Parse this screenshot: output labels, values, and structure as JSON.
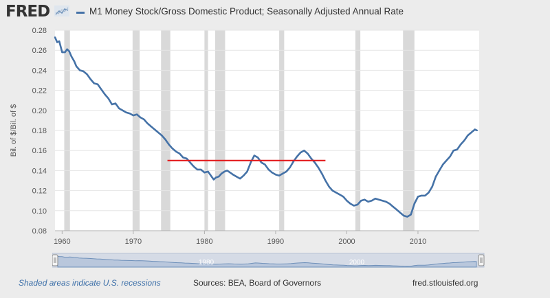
{
  "header": {
    "logo": "FRED",
    "series_title": "M1 Money Stock/Gross Domestic Product; Seasonally Adjusted Annual Rate",
    "series_color": "#4572a7"
  },
  "footer": {
    "recession_note": "Shaded areas indicate U.S. recessions",
    "sources": "Sources: BEA, Board of Governors",
    "site": "fred.stlouisfed.org"
  },
  "navigator": {
    "labels": [
      "1980",
      "2000"
    ]
  },
  "chart_data": {
    "type": "line",
    "title": "M1 Money Stock/Gross Domestic Product; Seasonally Adjusted Annual Rate",
    "ylabel": "Bil. of $/Bil. of $",
    "xlabel": "",
    "xlim": [
      1959,
      2018.6
    ],
    "ylim": [
      0.08,
      0.28
    ],
    "x_ticks": [
      1960,
      1970,
      1980,
      1990,
      2000,
      2010
    ],
    "y_ticks": [
      0.08,
      0.1,
      0.12,
      0.14,
      0.16,
      0.18,
      0.2,
      0.22,
      0.24,
      0.26,
      0.28
    ],
    "y_tick_labels": [
      "0.08",
      "0.10",
      "0.12",
      "0.14",
      "0.16",
      "0.18",
      "0.20",
      "0.22",
      "0.24",
      "0.26",
      "0.28"
    ],
    "grid": true,
    "line_color": "#4572a7",
    "recession_color": "#d9d9d9",
    "recessions": [
      [
        1960.3,
        1961.1
      ],
      [
        1969.9,
        1970.9
      ],
      [
        1973.9,
        1975.2
      ],
      [
        1980.0,
        1980.5
      ],
      [
        1981.5,
        1982.9
      ],
      [
        1990.5,
        1991.2
      ],
      [
        2001.2,
        2001.9
      ],
      [
        2007.9,
        2009.5
      ]
    ],
    "series": [
      {
        "x": [
          1959.0,
          1959.3,
          1959.6,
          1960.0,
          1960.4,
          1960.7,
          1961.0,
          1961.3,
          1961.7,
          1962.0,
          1962.5,
          1963.0,
          1963.5,
          1964.0,
          1964.5,
          1965.0,
          1965.5,
          1966.0,
          1966.5,
          1967.0,
          1967.5,
          1968.0,
          1968.5,
          1969.0,
          1969.5,
          1970.0,
          1970.5,
          1971.0,
          1971.5,
          1972.0,
          1972.5,
          1973.0,
          1973.5,
          1974.0,
          1974.5,
          1975.0,
          1975.5,
          1976.0,
          1976.5,
          1977.0,
          1977.5,
          1978.0,
          1978.5,
          1979.0,
          1979.5,
          1980.0,
          1980.5,
          1981.0,
          1981.3,
          1981.6,
          1982.0,
          1982.4,
          1982.8,
          1983.2,
          1983.6,
          1984.0,
          1984.5,
          1985.0,
          1985.5,
          1986.0,
          1986.5,
          1987.0,
          1987.5,
          1988.0,
          1988.5,
          1989.0,
          1989.5,
          1990.0,
          1990.5,
          1991.0,
          1991.5,
          1992.0,
          1992.5,
          1993.0,
          1993.5,
          1994.0,
          1994.5,
          1995.0,
          1995.5,
          1996.0,
          1996.5,
          1997.0,
          1997.5,
          1998.0,
          1998.5,
          1999.0,
          1999.5,
          2000.0,
          2000.5,
          2001.0,
          2001.5,
          2002.0,
          2002.5,
          2003.0,
          2003.5,
          2004.0,
          2004.5,
          2005.0,
          2005.5,
          2006.0,
          2006.5,
          2007.0,
          2007.5,
          2008.0,
          2008.5,
          2009.0,
          2009.5,
          2010.0,
          2010.5,
          2011.0,
          2011.5,
          2012.0,
          2012.5,
          2013.0,
          2013.5,
          2014.0,
          2014.5,
          2015.0,
          2015.5,
          2016.0,
          2016.5,
          2017.0,
          2017.5,
          2018.0,
          2018.3
        ],
        "values": [
          0.273,
          0.268,
          0.269,
          0.258,
          0.258,
          0.261,
          0.259,
          0.254,
          0.249,
          0.244,
          0.24,
          0.239,
          0.236,
          0.231,
          0.227,
          0.226,
          0.221,
          0.216,
          0.212,
          0.206,
          0.207,
          0.202,
          0.2,
          0.198,
          0.197,
          0.195,
          0.196,
          0.193,
          0.191,
          0.187,
          0.184,
          0.181,
          0.178,
          0.175,
          0.171,
          0.166,
          0.162,
          0.159,
          0.157,
          0.153,
          0.152,
          0.148,
          0.144,
          0.141,
          0.141,
          0.138,
          0.139,
          0.134,
          0.131,
          0.133,
          0.134,
          0.137,
          0.139,
          0.14,
          0.138,
          0.136,
          0.134,
          0.132,
          0.135,
          0.139,
          0.148,
          0.155,
          0.153,
          0.148,
          0.146,
          0.141,
          0.138,
          0.136,
          0.135,
          0.137,
          0.139,
          0.143,
          0.149,
          0.154,
          0.158,
          0.16,
          0.157,
          0.152,
          0.148,
          0.143,
          0.137,
          0.13,
          0.124,
          0.12,
          0.118,
          0.116,
          0.114,
          0.11,
          0.107,
          0.105,
          0.106,
          0.11,
          0.111,
          0.109,
          0.11,
          0.112,
          0.111,
          0.11,
          0.109,
          0.107,
          0.104,
          0.101,
          0.098,
          0.095,
          0.094,
          0.096,
          0.107,
          0.114,
          0.115,
          0.115,
          0.118,
          0.124,
          0.134,
          0.14,
          0.146,
          0.15,
          0.154,
          0.16,
          0.161,
          0.166,
          0.17,
          0.175,
          0.178,
          0.181,
          0.18
        ]
      }
    ],
    "annotation": {
      "type": "horizontal-line",
      "color": "#e31a1c",
      "x_start": 1974.8,
      "x_end": 1997.0,
      "y": 0.15
    }
  }
}
